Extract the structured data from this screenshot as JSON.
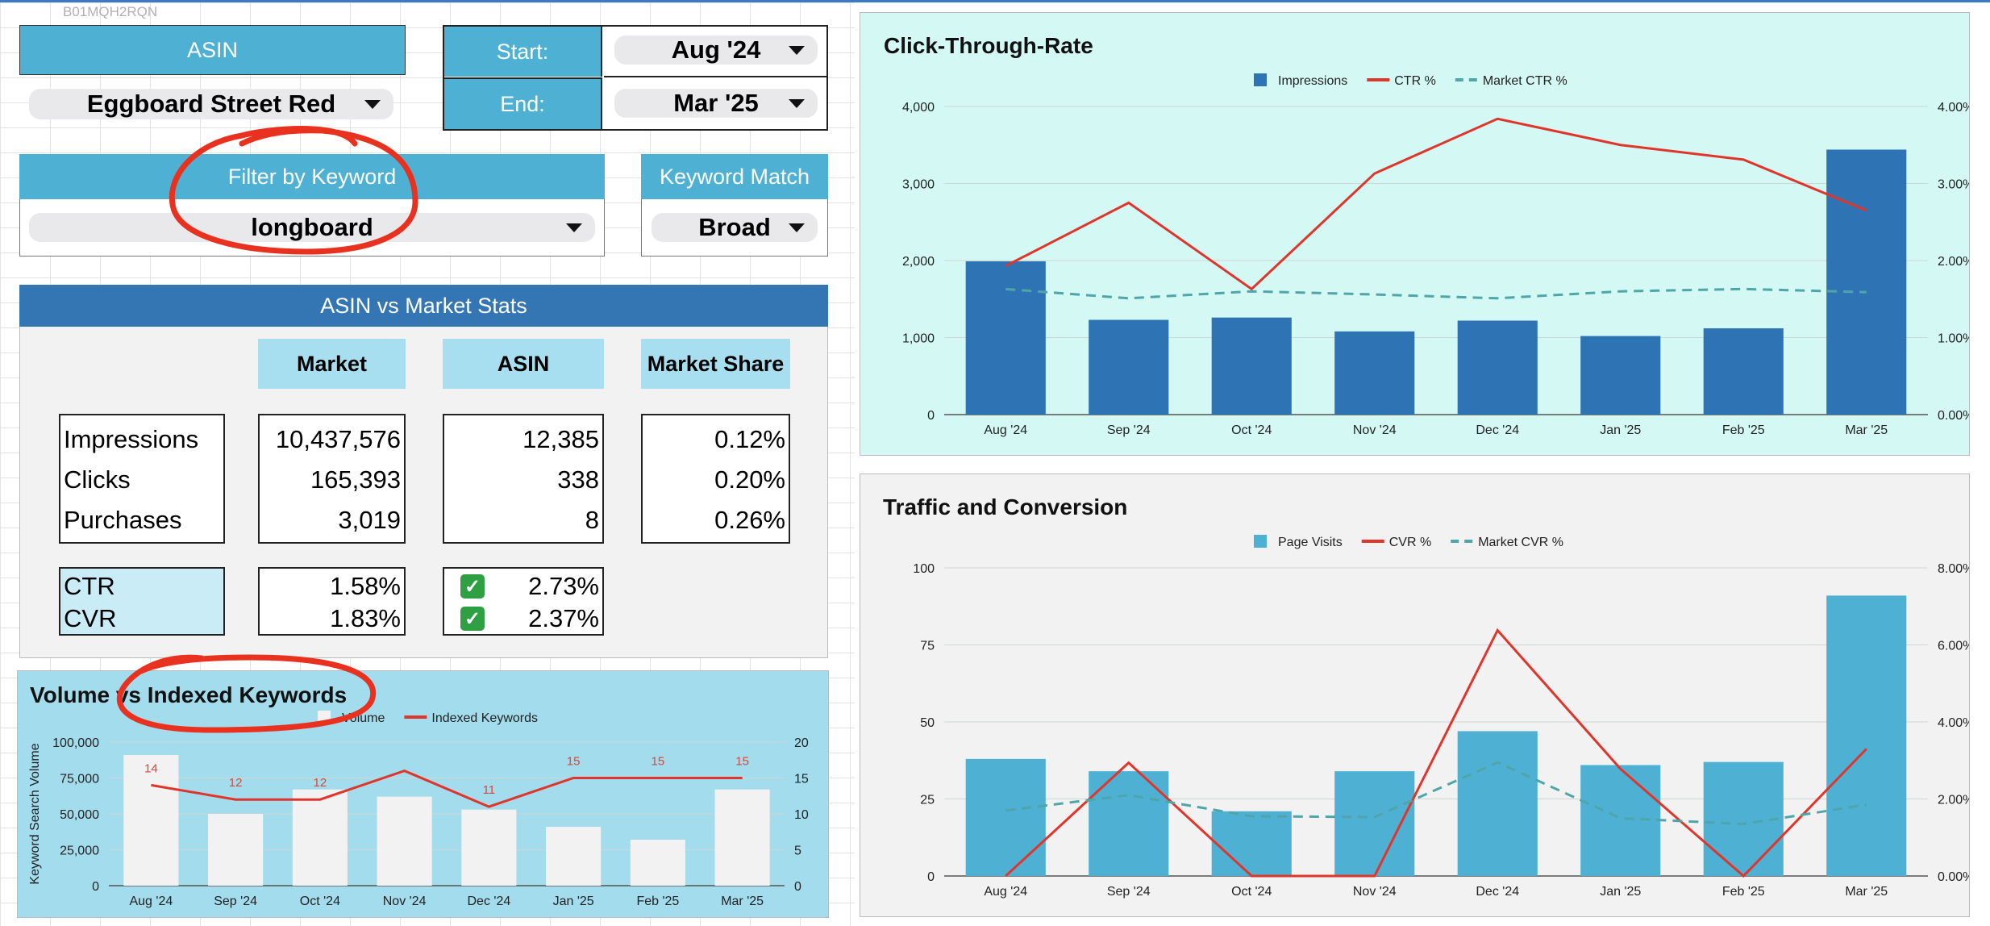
{
  "top_asin_code": "B01MQH2RQN",
  "asin_panel": {
    "header": "ASIN",
    "selected": "Eggboard Street Red"
  },
  "date_panel": {
    "start_label": "Start:",
    "start_value": "Aug '24",
    "end_label": "End:",
    "end_value": "Mar '25"
  },
  "keyword_panel": {
    "header": "Filter by Keyword",
    "value": "longboard",
    "match_header": "Keyword Match",
    "match_value": "Broad"
  },
  "stats": {
    "title": "ASIN vs Market Stats",
    "columns": [
      "Market",
      "ASIN",
      "Market Share"
    ],
    "rows": [
      {
        "label": "Impressions",
        "market": "10,437,576",
        "asin": "12,385",
        "share": "0.12%"
      },
      {
        "label": "Clicks",
        "market": "165,393",
        "asin": "338",
        "share": "0.20%"
      },
      {
        "label": "Purchases",
        "market": "3,019",
        "asin": "8",
        "share": "0.26%"
      }
    ],
    "rates": [
      {
        "label": "CTR",
        "market": "1.58%",
        "asin": "2.73%",
        "check": "✓"
      },
      {
        "label": "CVR",
        "market": "1.83%",
        "asin": "2.37%",
        "check": "✓"
      }
    ]
  },
  "colors": {
    "header_blue": "#4eb1d4",
    "header_dark": "#3476b4",
    "col_head": "#a8dff0",
    "ctr_bg": "#d4f8f4",
    "traffic_bg": "#f2f2f2",
    "volume_bg": "#a3dcec",
    "bar_dark": "#2e74b5",
    "bar_light": "#4eb1d4",
    "line_red": "#e0352b",
    "line_dashed": "#4fa6a8",
    "annotation_red": "#e8321f"
  },
  "chart_data": [
    {
      "type": "bar",
      "title": "Click-Through-Rate",
      "categories": [
        "Aug '24",
        "Sep '24",
        "Oct '24",
        "Nov '24",
        "Dec '24",
        "Jan '25",
        "Feb '25",
        "Mar '25"
      ],
      "series": [
        {
          "name": "Impressions",
          "kind": "bar",
          "axis": "left",
          "values": [
            1990,
            1230,
            1260,
            1080,
            1220,
            1020,
            1120,
            3440
          ]
        },
        {
          "name": "CTR %",
          "kind": "line",
          "axis": "right",
          "values": [
            1.93,
            2.75,
            1.63,
            3.13,
            3.84,
            3.5,
            3.31,
            2.65
          ]
        },
        {
          "name": "Market CTR %",
          "kind": "dashed-line",
          "axis": "right",
          "values": [
            1.63,
            1.51,
            1.6,
            1.56,
            1.51,
            1.6,
            1.63,
            1.59
          ]
        }
      ],
      "ylim": [
        0,
        4000
      ],
      "y_ticks": [
        "0",
        "1,000",
        "2,000",
        "3,000",
        "4,000"
      ],
      "y2lim": [
        0,
        4
      ],
      "y2_ticks": [
        "0.00%",
        "1.00%",
        "2.00%",
        "3.00%",
        "4.00%"
      ],
      "legend": "top-center"
    },
    {
      "type": "bar",
      "title": "Traffic and Conversion",
      "categories": [
        "Aug '24",
        "Sep '24",
        "Oct '24",
        "Nov '24",
        "Dec '24",
        "Jan '25",
        "Feb '25",
        "Mar '25"
      ],
      "series": [
        {
          "name": "Page Visits",
          "kind": "bar",
          "axis": "left",
          "values": [
            38,
            34,
            21,
            34,
            47,
            36,
            37,
            91
          ]
        },
        {
          "name": "CVR %",
          "kind": "line",
          "axis": "right",
          "values": [
            0,
            2.94,
            0,
            0,
            6.38,
            2.78,
            0,
            3.3
          ]
        },
        {
          "name": "Market CVR %",
          "kind": "dashed-line",
          "axis": "right",
          "values": [
            1.7,
            2.1,
            1.55,
            1.53,
            2.95,
            1.5,
            1.35,
            1.85
          ]
        }
      ],
      "ylim": [
        0,
        100
      ],
      "y_ticks": [
        "0",
        "25",
        "50",
        "75",
        "100"
      ],
      "y2lim": [
        0,
        8
      ],
      "y2_ticks": [
        "0.00%",
        "2.00%",
        "4.00%",
        "6.00%",
        "8.00%"
      ],
      "legend": "top-center"
    },
    {
      "type": "bar",
      "title": "Volume vs Indexed Keywords",
      "categories": [
        "Aug '24",
        "Sep '24",
        "Oct '24",
        "Nov '24",
        "Dec '24",
        "Jan '25",
        "Feb '25",
        "Mar '25"
      ],
      "ylabel": "Keyword Search Volume",
      "series": [
        {
          "name": "Volume",
          "kind": "bar",
          "axis": "left",
          "values": [
            91000,
            50000,
            67000,
            62000,
            53000,
            41000,
            32000,
            67000
          ]
        },
        {
          "name": "Indexed Keywords",
          "kind": "line",
          "axis": "right",
          "values": [
            14,
            12,
            12,
            16,
            11,
            15,
            15,
            15
          ]
        }
      ],
      "point_labels": [
        "14",
        "12",
        "12",
        "",
        "11",
        "15",
        "15",
        "15"
      ],
      "ylim": [
        0,
        100000
      ],
      "y_ticks": [
        "0",
        "25,000",
        "50,000",
        "75,000",
        "100,000"
      ],
      "y2lim": [
        0,
        20
      ],
      "y2_ticks": [
        "0",
        "5",
        "10",
        "15",
        "20"
      ],
      "legend": "top-center"
    }
  ]
}
